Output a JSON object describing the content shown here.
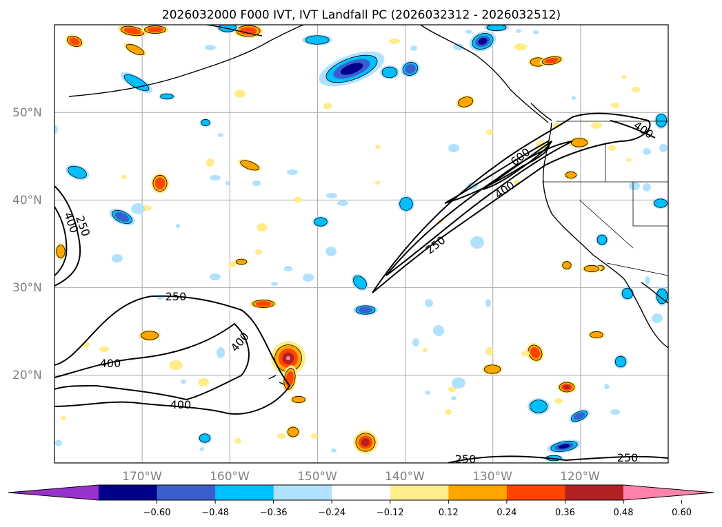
{
  "title": "2026032000 F000 IVT, IVT Landfall PC (2026032312 - 2026032512)",
  "map": {
    "projection": "PlateCarree",
    "lon_range": [
      -180,
      -110
    ],
    "lat_range": [
      10,
      60
    ],
    "lat_labels": [
      "50°N",
      "40°N",
      "30°N",
      "20°N"
    ],
    "lon_labels": [
      "170°W",
      "160°W",
      "150°W",
      "140°W",
      "130°W",
      "120°W"
    ],
    "gridlines": true,
    "coastline_color": "#000000",
    "ivt_contour_labels": [
      "250",
      "400",
      "250",
      "400",
      "400",
      "250",
      "400",
      "600",
      "250",
      "250",
      "400"
    ]
  },
  "chart_data": {
    "type": "filled-contour",
    "variable": "IVT landfall principal component",
    "ivt_contour_levels": [
      250,
      400,
      600
    ],
    "colorbar": {
      "ticks": [
        "−0.60",
        "−0.48",
        "−0.36",
        "−0.24",
        "−0.12",
        "0.12",
        "0.24",
        "0.36",
        "0.48",
        "0.60"
      ],
      "bounds": [
        -0.72,
        -0.6,
        -0.48,
        -0.36,
        -0.24,
        -0.12,
        0.12,
        0.24,
        0.36,
        0.48,
        0.6,
        0.72
      ],
      "colors": [
        "#9932cc",
        "#00008b",
        "#3a5fcd",
        "#00bfff",
        "#b0e2ff",
        "#ffffff",
        "#ffec8b",
        "#ffa500",
        "#ff4500",
        "#b22222",
        "#ff82ab"
      ],
      "extend": "both"
    }
  }
}
